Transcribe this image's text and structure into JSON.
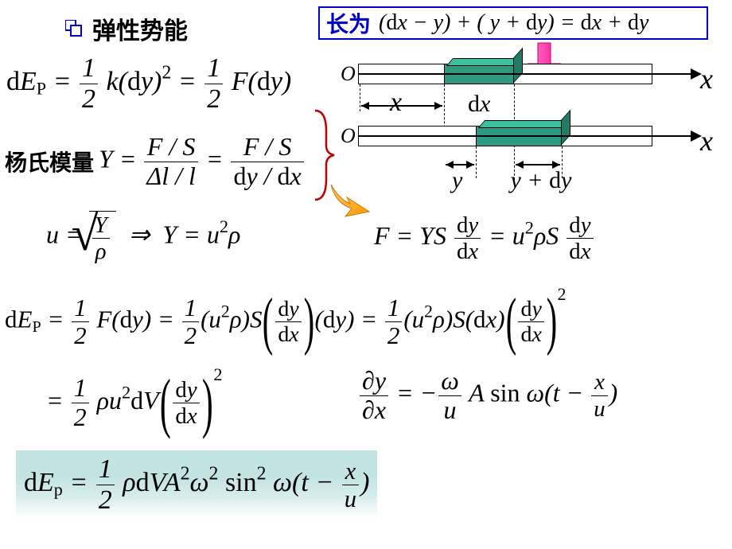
{
  "title": "弹性势能",
  "length_box": {
    "label": "长为",
    "expr_html": "(<span class='rm'>d</span>x − y) + ( y + <span class='rm'>d</span>y) = <span class='rm'>d</span>x + <span class='rm'>d</span>y"
  },
  "youngs_label": "杨氏模量",
  "diagram": {
    "origin_label": "O",
    "x_label": "x",
    "dx_label_html": "<span class='rm'>d</span>x",
    "y_label": "y",
    "ydy_label_html": "y + <span class='rm'>d</span>y",
    "bar_color": "#ffffff",
    "seg_color": "#2e9980",
    "arrow_fill": [
      "#ff7fd0",
      "#ff1493"
    ],
    "brace_color": "#c00000",
    "curly_arrow_color": "#ff9900"
  },
  "equations": {
    "eq1_html": "<span class='rm'>d</span>E<sub>P</sub> = <span class='frac'><span class='num'>1</span><span class='den'>2</span></span> k(<span class='rm'>d</span>y)<sup>2</sup> = <span class='frac'><span class='num'>1</span><span class='den'>2</span></span> F(<span class='rm'>d</span>y)",
    "eq2_html": "Y = <span class='frac'><span class='num'>F / S</span><span class='den'>Δl / l</span></span> = <span class='frac'><span class='num'>F / S</span><span class='den'><span class='rm'>d</span>y / <span class='rm'>d</span>x</span></span>",
    "eq3_html": "u = <span class='sqrt-wrap'><span class='sqrt-sym'>√</span><span class='sqrt-body'><span class='frac small'><span class='num'>Y</span><span class='den'>ρ</span></span></span></span> &nbsp;⇒&nbsp; Y = u<sup>2</sup>ρ",
    "eq4_html": "F = YS <span class='frac small'><span class='num'><span class='rm'>d</span>y</span><span class='den'><span class='rm'>d</span>x</span></span> = u<sup>2</sup>ρS <span class='frac small'><span class='num'><span class='rm'>d</span>y</span><span class='den'><span class='rm'>d</span>x</span></span>",
    "eq5_html": "<span class='rm'>d</span>E<sub>P</sub> = <span class='frac'><span class='num'>1</span><span class='den'>2</span></span> F(<span class='rm'>d</span>y) = <span class='frac'><span class='num'>1</span><span class='den'>2</span></span>(u<sup>2</sup>ρ)S<span class='bigparen'>(</span><span class='frac small'><span class='num'><span class='rm'>d</span>y</span><span class='den'><span class='rm'>d</span>x</span></span><span class='bigparen'>)</span>(<span class='rm'>d</span>y) = <span class='frac'><span class='num'>1</span><span class='den'>2</span></span>(u<sup>2</sup>ρ)S(<span class='rm'>d</span>x)<span class='bigparen'>(</span><span class='frac small'><span class='num'><span class='rm'>d</span>y</span><span class='den'><span class='rm'>d</span>x</span></span><span class='bigparen'>)</span><sup style='vertical-align:1.6em'>2</sup>",
    "eq6_html": "= <span class='frac'><span class='num'>1</span><span class='den'>2</span></span> ρu<sup>2</sup><span class='rm'>d</span>V<span class='bigparen'>(</span><span class='frac small'><span class='num'><span class='rm'>d</span>y</span><span class='den'><span class='rm'>d</span>x</span></span><span class='bigparen'>)</span><sup style='vertical-align:1.6em'>2</sup>",
    "eq7_html": "<span class='frac'><span class='num'>∂y</span><span class='den'>∂x</span></span> = −<span class='frac'><span class='num'>ω</span><span class='den'>u</span></span> A <span class='rm'>sin</span> ω(t − <span class='frac small'><span class='num'>x</span><span class='den'>u</span></span>)",
    "eq8_html": "<span class='rm'>d</span>E<sub>p</sub> = <span class='frac'><span class='num'>1</span><span class='den'>2</span></span> ρ<span class='rm'>d</span>VA<sup>2</sup>ω<sup>2</sup> <span class='rm'>sin</span><sup>2</sup> ω(t − <span class='frac small'><span class='num'>x</span><span class='den'>u</span></span>)"
  },
  "layout": {
    "font_size_eq": 30,
    "colors": {
      "border_blue": "#0000cc",
      "text": "#000000"
    }
  }
}
